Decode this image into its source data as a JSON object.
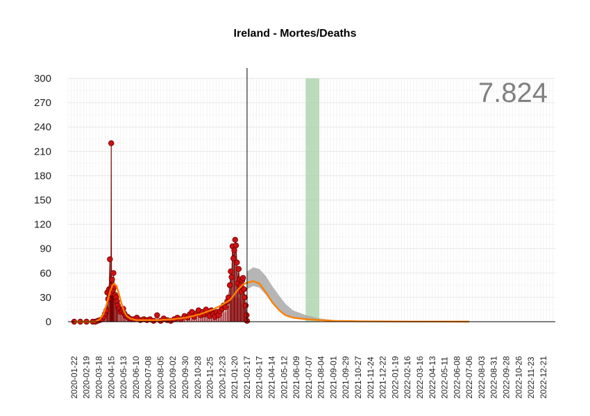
{
  "chart_data": {
    "type": "line",
    "title": "Ireland - Mortes/Deaths",
    "total_label": "7.824",
    "ylim": [
      0,
      300
    ],
    "y_ticks": [
      0,
      30,
      60,
      90,
      120,
      150,
      180,
      210,
      240,
      270,
      300
    ],
    "xlim": [
      "2020-01-08",
      "2023-01-17"
    ],
    "x_ticks": [
      "2020-01-22",
      "2020-02-19",
      "2020-03-18",
      "2020-04-15",
      "2020-05-13",
      "2020-06-10",
      "2020-07-08",
      "2020-08-05",
      "2020-09-02",
      "2020-09-30",
      "2020-10-28",
      "2020-11-25",
      "2020-12-23",
      "2021-01-20",
      "2021-02-17",
      "2021-03-17",
      "2021-04-14",
      "2021-05-12",
      "2021-06-09",
      "2021-07-07",
      "2021-08-04",
      "2021-09-01",
      "2021-09-29",
      "2021-10-27",
      "2021-11-24",
      "2021-12-22",
      "2022-01-19",
      "2022-02-16",
      "2022-03-16",
      "2022-04-13",
      "2022-05-11",
      "2022-06-08",
      "2022-07-06",
      "2022-08-03",
      "2022-08-31",
      "2022-09-28",
      "2022-10-26",
      "2022-11-23",
      "2022-12-21"
    ],
    "grid": true,
    "vertical_line_date": "2021-02-17",
    "shaded_band": {
      "from": "2021-06-30",
      "to": "2021-07-31",
      "color": "#9fcf9f"
    },
    "colors": {
      "points": "#cc1111",
      "stems": "#7a0000",
      "fit": "#ff7f00",
      "forecast": "#a9a9a9",
      "area": "#e06070"
    },
    "series": [
      {
        "kind": "daily",
        "points": [
          [
            "2020-01-22",
            0
          ],
          [
            "2020-02-05",
            0
          ],
          [
            "2020-02-19",
            0
          ],
          [
            "2020-03-04",
            0
          ],
          [
            "2020-03-10",
            0
          ],
          [
            "2020-03-15",
            1
          ],
          [
            "2020-03-20",
            2
          ],
          [
            "2020-03-25",
            3
          ],
          [
            "2020-03-29",
            6
          ],
          [
            "2020-04-01",
            10
          ],
          [
            "2020-04-04",
            14
          ],
          [
            "2020-04-06",
            36
          ],
          [
            "2020-04-08",
            28
          ],
          [
            "2020-04-10",
            40
          ],
          [
            "2020-04-12",
            77
          ],
          [
            "2020-04-13",
            35
          ],
          [
            "2020-04-14",
            41
          ],
          [
            "2020-04-15",
            220
          ],
          [
            "2020-04-16",
            44
          ],
          [
            "2020-04-17",
            52
          ],
          [
            "2020-04-18",
            41
          ],
          [
            "2020-04-19",
            39
          ],
          [
            "2020-04-20",
            60
          ],
          [
            "2020-04-22",
            43
          ],
          [
            "2020-04-24",
            33
          ],
          [
            "2020-04-26",
            30
          ],
          [
            "2020-04-28",
            25
          ],
          [
            "2020-04-30",
            20
          ],
          [
            "2020-05-03",
            16
          ],
          [
            "2020-05-06",
            12
          ],
          [
            "2020-05-09",
            14
          ],
          [
            "2020-05-12",
            16
          ],
          [
            "2020-05-15",
            10
          ],
          [
            "2020-05-18",
            7
          ],
          [
            "2020-05-22",
            6
          ],
          [
            "2020-05-26",
            4
          ],
          [
            "2020-05-30",
            3
          ],
          [
            "2020-06-05",
            3
          ],
          [
            "2020-06-12",
            5
          ],
          [
            "2020-06-20",
            2
          ],
          [
            "2020-06-28",
            3
          ],
          [
            "2020-07-05",
            2
          ],
          [
            "2020-07-12",
            3
          ],
          [
            "2020-07-20",
            1
          ],
          [
            "2020-07-28",
            8
          ],
          [
            "2020-08-05",
            1
          ],
          [
            "2020-08-12",
            4
          ],
          [
            "2020-08-20",
            2
          ],
          [
            "2020-08-28",
            1
          ],
          [
            "2020-09-05",
            3
          ],
          [
            "2020-09-12",
            5
          ],
          [
            "2020-09-20",
            3
          ],
          [
            "2020-09-28",
            7
          ],
          [
            "2020-10-05",
            5
          ],
          [
            "2020-10-10",
            9
          ],
          [
            "2020-10-15",
            12
          ],
          [
            "2020-10-20",
            6
          ],
          [
            "2020-10-25",
            10
          ],
          [
            "2020-10-30",
            14
          ],
          [
            "2020-11-04",
            8
          ],
          [
            "2020-11-08",
            12
          ],
          [
            "2020-11-12",
            9
          ],
          [
            "2020-11-16",
            15
          ],
          [
            "2020-11-20",
            10
          ],
          [
            "2020-11-24",
            7
          ],
          [
            "2020-11-28",
            14
          ],
          [
            "2020-12-02",
            9
          ],
          [
            "2020-12-06",
            6
          ],
          [
            "2020-12-10",
            12
          ],
          [
            "2020-12-14",
            8
          ],
          [
            "2020-12-18",
            13
          ],
          [
            "2020-12-22",
            16
          ],
          [
            "2020-12-26",
            20
          ],
          [
            "2020-12-30",
            18
          ],
          [
            "2021-01-03",
            25
          ],
          [
            "2021-01-06",
            30
          ],
          [
            "2021-01-09",
            45
          ],
          [
            "2021-01-11",
            62
          ],
          [
            "2021-01-13",
            55
          ],
          [
            "2021-01-15",
            93
          ],
          [
            "2021-01-17",
            78
          ],
          [
            "2021-01-19",
            88
          ],
          [
            "2021-01-21",
            101
          ],
          [
            "2021-01-23",
            94
          ],
          [
            "2021-01-25",
            73
          ],
          [
            "2021-01-27",
            47
          ],
          [
            "2021-01-29",
            65
          ],
          [
            "2021-01-31",
            52
          ],
          [
            "2021-02-02",
            44
          ],
          [
            "2021-02-04",
            37
          ],
          [
            "2021-02-06",
            51
          ],
          [
            "2021-02-08",
            54
          ],
          [
            "2021-02-10",
            40
          ],
          [
            "2021-02-12",
            30
          ],
          [
            "2021-02-14",
            20
          ],
          [
            "2021-02-16",
            8
          ],
          [
            "2021-02-17",
            1
          ]
        ]
      },
      {
        "kind": "fit",
        "points": [
          [
            "2020-01-22",
            0
          ],
          [
            "2020-03-10",
            0
          ],
          [
            "2020-03-20",
            3
          ],
          [
            "2020-03-28",
            9
          ],
          [
            "2020-04-05",
            22
          ],
          [
            "2020-04-12",
            37
          ],
          [
            "2020-04-18",
            45
          ],
          [
            "2020-04-22",
            47
          ],
          [
            "2020-04-27",
            44
          ],
          [
            "2020-05-02",
            35
          ],
          [
            "2020-05-08",
            23
          ],
          [
            "2020-05-14",
            13
          ],
          [
            "2020-05-20",
            7
          ],
          [
            "2020-05-28",
            4
          ],
          [
            "2020-06-10",
            2
          ],
          [
            "2020-07-01",
            2
          ],
          [
            "2020-08-01",
            2
          ],
          [
            "2020-09-01",
            3
          ],
          [
            "2020-10-01",
            5
          ],
          [
            "2020-11-01",
            9
          ],
          [
            "2020-12-01",
            15
          ],
          [
            "2020-12-20",
            20
          ],
          [
            "2021-01-10",
            27
          ],
          [
            "2021-01-25",
            38
          ],
          [
            "2021-02-08",
            46
          ],
          [
            "2021-02-17",
            48
          ],
          [
            "2021-03-03",
            50
          ],
          [
            "2021-03-17",
            47
          ],
          [
            "2021-04-01",
            36
          ],
          [
            "2021-04-15",
            24
          ],
          [
            "2021-05-01",
            14
          ],
          [
            "2021-05-15",
            8
          ],
          [
            "2021-06-01",
            5
          ],
          [
            "2021-07-01",
            3
          ],
          [
            "2021-08-01",
            2
          ],
          [
            "2021-09-01",
            1
          ],
          [
            "2021-11-01",
            0.5
          ],
          [
            "2022-03-01",
            0.2
          ],
          [
            "2022-07-06",
            0.1
          ]
        ]
      },
      {
        "kind": "forecast_band",
        "points": [
          [
            "2021-02-17",
            40,
            62
          ],
          [
            "2021-03-03",
            44,
            67
          ],
          [
            "2021-03-17",
            42,
            65
          ],
          [
            "2021-04-01",
            33,
            56
          ],
          [
            "2021-04-15",
            23,
            44
          ],
          [
            "2021-05-01",
            15,
            32
          ],
          [
            "2021-05-15",
            9,
            22
          ],
          [
            "2021-06-01",
            5,
            14
          ],
          [
            "2021-07-01",
            2,
            8
          ],
          [
            "2021-08-01",
            1,
            4
          ],
          [
            "2021-09-01",
            0.5,
            2
          ],
          [
            "2021-10-15",
            0,
            0.8
          ],
          [
            "2022-07-06",
            0,
            0.2
          ]
        ]
      }
    ]
  }
}
